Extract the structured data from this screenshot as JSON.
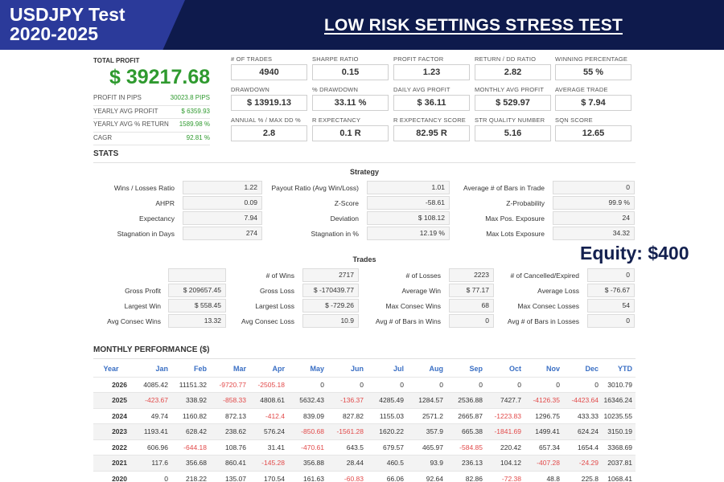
{
  "header": {
    "symbol_line1": "USDJPY Test",
    "symbol_line2": "2020-2025",
    "test_title": "LOW RISK SETTINGS STRESS TEST"
  },
  "summary": {
    "total_profit_label": "TOTAL PROFIT",
    "total_profit_value": "$ 39217.68",
    "side_stats": [
      {
        "label": "PROFIT IN PIPS",
        "value": "30023.8 PIPS"
      },
      {
        "label": "YEARLY AVG PROFIT",
        "value": "$ 6359.93"
      },
      {
        "label": "YEARLY AVG % RETURN",
        "value": "1589.98 %"
      },
      {
        "label": "CAGR",
        "value": "92.81 %"
      }
    ]
  },
  "metrics": [
    {
      "label": "# OF TRADES",
      "value": "4940"
    },
    {
      "label": "SHARPE RATIO",
      "value": "0.15"
    },
    {
      "label": "PROFIT FACTOR",
      "value": "1.23"
    },
    {
      "label": "RETURN / DD RATIO",
      "value": "2.82"
    },
    {
      "label": "WINNING PERCENTAGE",
      "value": "55 %"
    },
    {
      "label": "DRAWDOWN",
      "value": "$ 13919.13"
    },
    {
      "label": "% DRAWDOWN",
      "value": "33.11 %"
    },
    {
      "label": "DAILY AVG PROFIT",
      "value": "$ 36.11"
    },
    {
      "label": "MONTHLY AVG PROFIT",
      "value": "$ 529.97"
    },
    {
      "label": "AVERAGE TRADE",
      "value": "$ 7.94"
    },
    {
      "label": "ANNUAL % / MAX DD %",
      "value": "2.8"
    },
    {
      "label": "R EXPECTANCY",
      "value": "0.1 R"
    },
    {
      "label": "R EXPECTANCY SCORE",
      "value": "82.95 R"
    },
    {
      "label": "STR QUALITY NUMBER",
      "value": "5.16"
    },
    {
      "label": "SQN SCORE",
      "value": "12.65"
    }
  ],
  "stats": {
    "heading": "STATS",
    "strategy_heading": "Strategy",
    "strategy": [
      [
        {
          "label": "Wins / Losses Ratio",
          "value": "1.22"
        },
        {
          "label": "Payout Ratio (Avg Win/Loss)",
          "value": "1.01"
        },
        {
          "label": "Average # of Bars in Trade",
          "value": "0"
        }
      ],
      [
        {
          "label": "AHPR",
          "value": "0.09"
        },
        {
          "label": "Z-Score",
          "value": "-58.61"
        },
        {
          "label": "Z-Probability",
          "value": "99.9 %"
        }
      ],
      [
        {
          "label": "Expectancy",
          "value": "7.94"
        },
        {
          "label": "Deviation",
          "value": "$ 108.12"
        },
        {
          "label": "Max Pos. Exposure",
          "value": "24"
        }
      ],
      [
        {
          "label": "Stagnation in Days",
          "value": "274"
        },
        {
          "label": "Stagnation in %",
          "value": "12.19 %"
        },
        {
          "label": "Max Lots Exposure",
          "value": "34.32"
        }
      ]
    ],
    "trades_heading": "Trades",
    "trades": [
      [
        {
          "label": "",
          "value": ""
        },
        {
          "label": "# of Wins",
          "value": "2717"
        },
        {
          "label": "# of Losses",
          "value": "2223"
        },
        {
          "label": "# of Cancelled/Expired",
          "value": "0"
        }
      ],
      [
        {
          "label": "Gross Profit",
          "value": "$ 209657.45"
        },
        {
          "label": "Gross Loss",
          "value": "$ -170439.77"
        },
        {
          "label": "Average Win",
          "value": "$ 77.17"
        },
        {
          "label": "Average Loss",
          "value": "$ -76.67"
        }
      ],
      [
        {
          "label": "Largest Win",
          "value": "$ 558.45"
        },
        {
          "label": "Largest Loss",
          "value": "$ -729.26"
        },
        {
          "label": "Max Consec Wins",
          "value": "68"
        },
        {
          "label": "Max Consec Losses",
          "value": "54"
        }
      ],
      [
        {
          "label": "Avg Consec Wins",
          "value": "13.32"
        },
        {
          "label": "Avg Consec Loss",
          "value": "10.9"
        },
        {
          "label": "Avg # of Bars in Wins",
          "value": "0"
        },
        {
          "label": "Avg # of Bars in Losses",
          "value": "0"
        }
      ]
    ]
  },
  "equity_note": "Equity: $400",
  "monthly": {
    "heading": "MONTHLY PERFORMANCE ($)",
    "columns": [
      "Year",
      "Jan",
      "Feb",
      "Mar",
      "Apr",
      "May",
      "Jun",
      "Jul",
      "Aug",
      "Sep",
      "Oct",
      "Nov",
      "Dec",
      "YTD"
    ],
    "rows": [
      [
        "2026",
        "4085.42",
        "11151.32",
        "-9720.77",
        "-2505.18",
        "0",
        "0",
        "0",
        "0",
        "0",
        "0",
        "0",
        "0",
        "3010.79"
      ],
      [
        "2025",
        "-423.67",
        "338.92",
        "-858.33",
        "4808.61",
        "5632.43",
        "-136.37",
        "4285.49",
        "1284.57",
        "2536.88",
        "7427.7",
        "-4126.35",
        "-4423.64",
        "16346.24"
      ],
      [
        "2024",
        "49.74",
        "1160.82",
        "872.13",
        "-412.4",
        "839.09",
        "827.82",
        "1155.03",
        "2571.2",
        "2665.87",
        "-1223.83",
        "1296.75",
        "433.33",
        "10235.55"
      ],
      [
        "2023",
        "1193.41",
        "628.42",
        "238.62",
        "576.24",
        "-850.68",
        "-1561.28",
        "1620.22",
        "357.9",
        "665.38",
        "-1841.69",
        "1499.41",
        "624.24",
        "3150.19"
      ],
      [
        "2022",
        "606.96",
        "-644.18",
        "108.76",
        "31.41",
        "-470.61",
        "643.5",
        "679.57",
        "465.97",
        "-584.85",
        "220.42",
        "657.34",
        "1654.4",
        "3368.69"
      ],
      [
        "2021",
        "117.6",
        "356.68",
        "860.41",
        "-145.28",
        "356.88",
        "28.44",
        "460.5",
        "93.9",
        "236.13",
        "104.12",
        "-407.28",
        "-24.29",
        "2037.81"
      ],
      [
        "2020",
        "0",
        "218.22",
        "135.07",
        "170.54",
        "161.63",
        "-60.83",
        "66.06",
        "92.64",
        "82.86",
        "-72.38",
        "48.8",
        "225.8",
        "1068.41"
      ]
    ]
  },
  "colors": {
    "header_bg": "#0e1a4c",
    "header_tab": "#2b3a9a",
    "profit_green": "#2f9a2f",
    "negative_red": "#e24a4a",
    "month_header_blue": "#3a6fc4"
  }
}
